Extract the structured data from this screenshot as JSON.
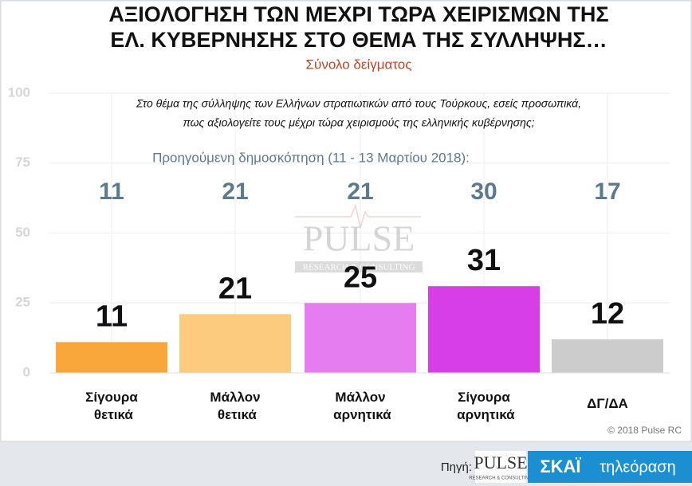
{
  "chart_data": {
    "type": "bar",
    "title": [
      "ΑΞΙΟΛΟΓΗΣΗ ΤΩΝ ΜΕΧΡΙ ΤΩΡΑ ΧΕΙΡΙΣΜΩΝ ΤΗΣ",
      "ΕΛ. ΚΥΒΕΡΝΗΣΗΣ ΣΤΟ ΘΕΜΑ ΤΗΣ ΣΥΛΛΗΨΗΣ…"
    ],
    "subtitle": "Σύνολο δείγματος",
    "question": [
      "Στο θέμα της σύλληψης των Ελλήνων στρατιωτικών από τους Τούρκους, εσείς προσωπικά,",
      "πως αξιολογείτε τους μέχρι τώρα χειρισμούς της ελληνικής κυβέρνησης;"
    ],
    "categories": [
      "Σίγουρα θετικά",
      "Μάλλον θετικά",
      "Μάλλον αρνητικά",
      "Σίγουρα αρνητικά",
      "ΔΓ/ΔΑ"
    ],
    "values": [
      11,
      21,
      25,
      31,
      12
    ],
    "colors": [
      "#f9a63a",
      "#fccb7e",
      "#e57df0",
      "#d83ee8",
      "#cccccc"
    ],
    "previous": {
      "label": "Προηγούμενη δημοσκόπηση (11 - 13 Μαρτίου 2018):",
      "values": [
        11,
        21,
        21,
        30,
        17
      ],
      "color": "#5e7a8a"
    },
    "ylim": [
      0,
      100
    ],
    "yticks": [
      0,
      25,
      50,
      75,
      100
    ],
    "grid": true,
    "copyright": "© 2018 Pulse RC",
    "watermark": [
      "PULSE",
      "RESEARCH & CONSULTING"
    ],
    "footer": {
      "source": "Πηγή:",
      "pulse": "PULSE",
      "pulse_sub": "RESEARCH & CONSULTING",
      "skai": "ΣΚΑΪ",
      "tv": "τηλεόραση"
    }
  }
}
